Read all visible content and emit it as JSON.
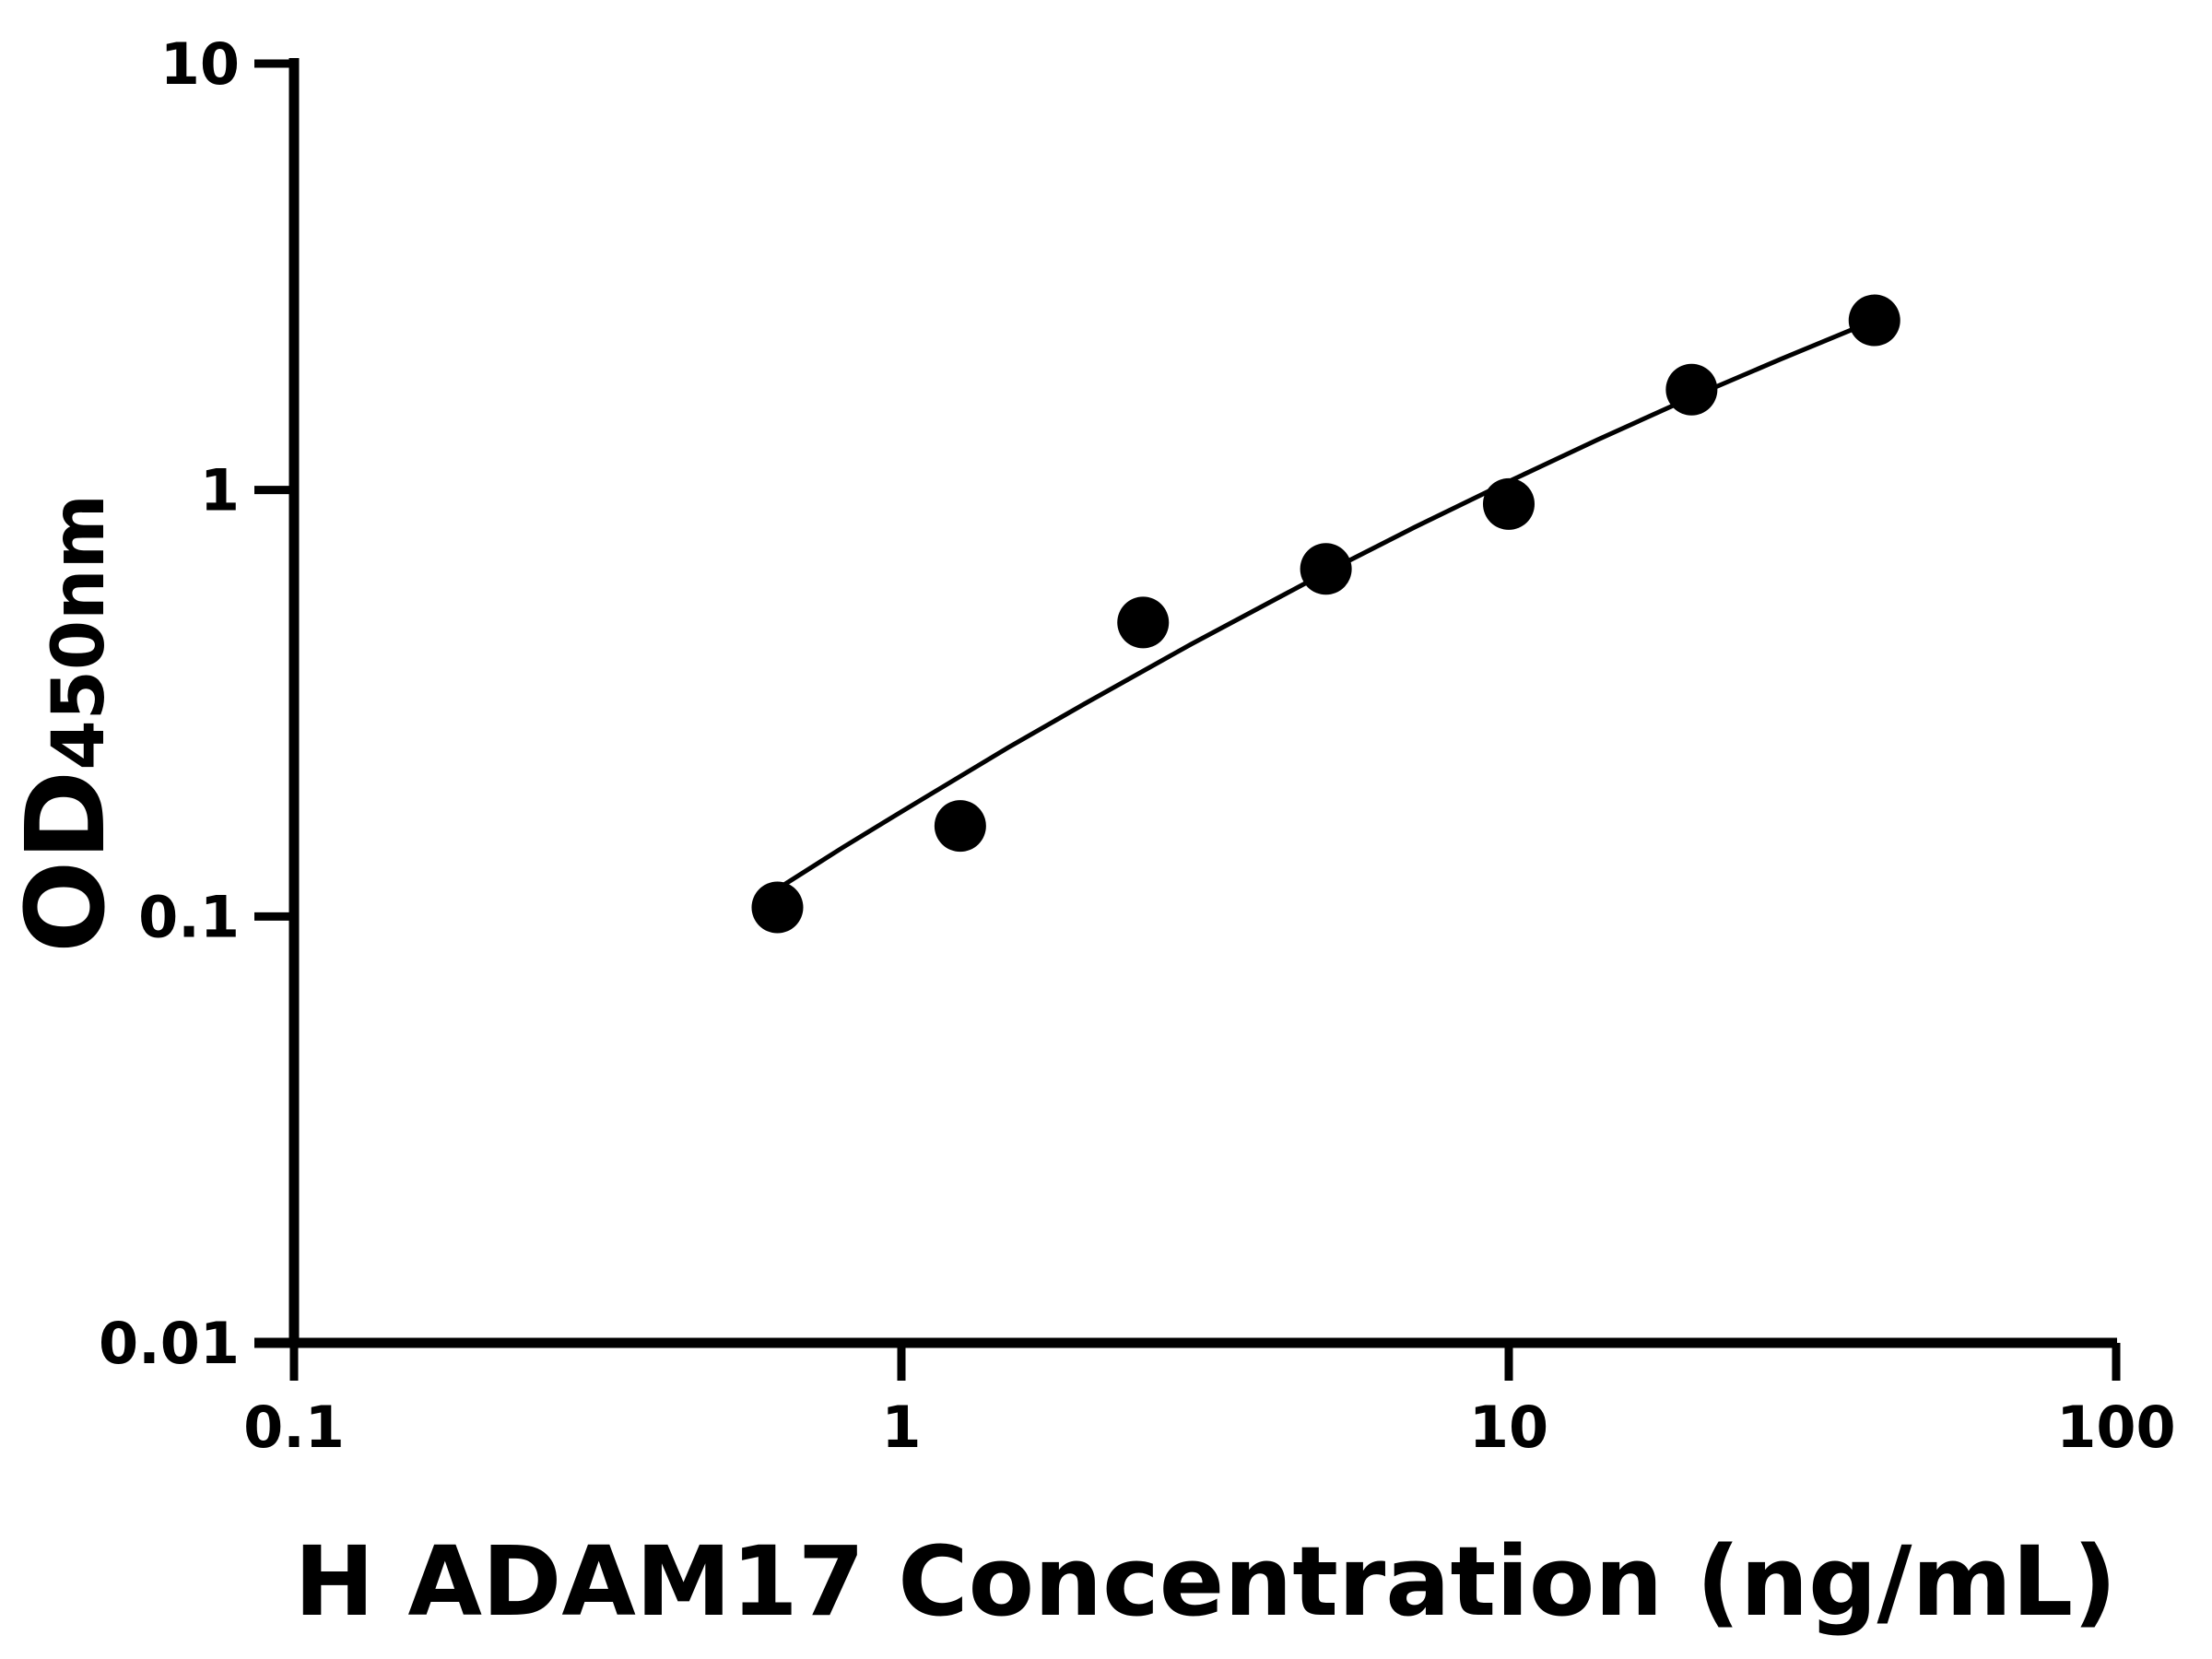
{
  "chart_data": {
    "type": "scatter",
    "xlabel": "H ADAM17 Concentration (ng/mL)",
    "ylabel_main": "OD",
    "ylabel_sub": "450nm",
    "x_scale": "log",
    "y_scale": "log",
    "xlim": [
      0.1,
      100
    ],
    "ylim": [
      0.01,
      10
    ],
    "x_ticks": [
      0.1,
      1,
      10,
      100
    ],
    "x_tick_labels": [
      "0.1",
      "1",
      "10",
      "100"
    ],
    "y_ticks": [
      0.01,
      0.1,
      1,
      10
    ],
    "y_tick_labels": [
      "0.01",
      "0.1",
      "1",
      "10"
    ],
    "grid": false,
    "legend": "none",
    "colors": {
      "points": "#000000",
      "curve": "#000000",
      "axes": "#000000"
    },
    "series": [
      {
        "x": [
          0.625,
          1.25,
          2.5,
          5,
          10,
          20,
          40
        ],
        "y": [
          0.105,
          0.163,
          0.489,
          0.653,
          0.927,
          1.72,
          2.5
        ]
      }
    ],
    "fit_curve": {
      "x": [
        0.625,
        0.8,
        1,
        1.5,
        2,
        3,
        5,
        7,
        10,
        14,
        20,
        28,
        40
      ],
      "y": [
        0.116,
        0.145,
        0.176,
        0.249,
        0.315,
        0.435,
        0.641,
        0.818,
        1.047,
        1.312,
        1.65,
        2.026,
        2.5
      ]
    }
  }
}
